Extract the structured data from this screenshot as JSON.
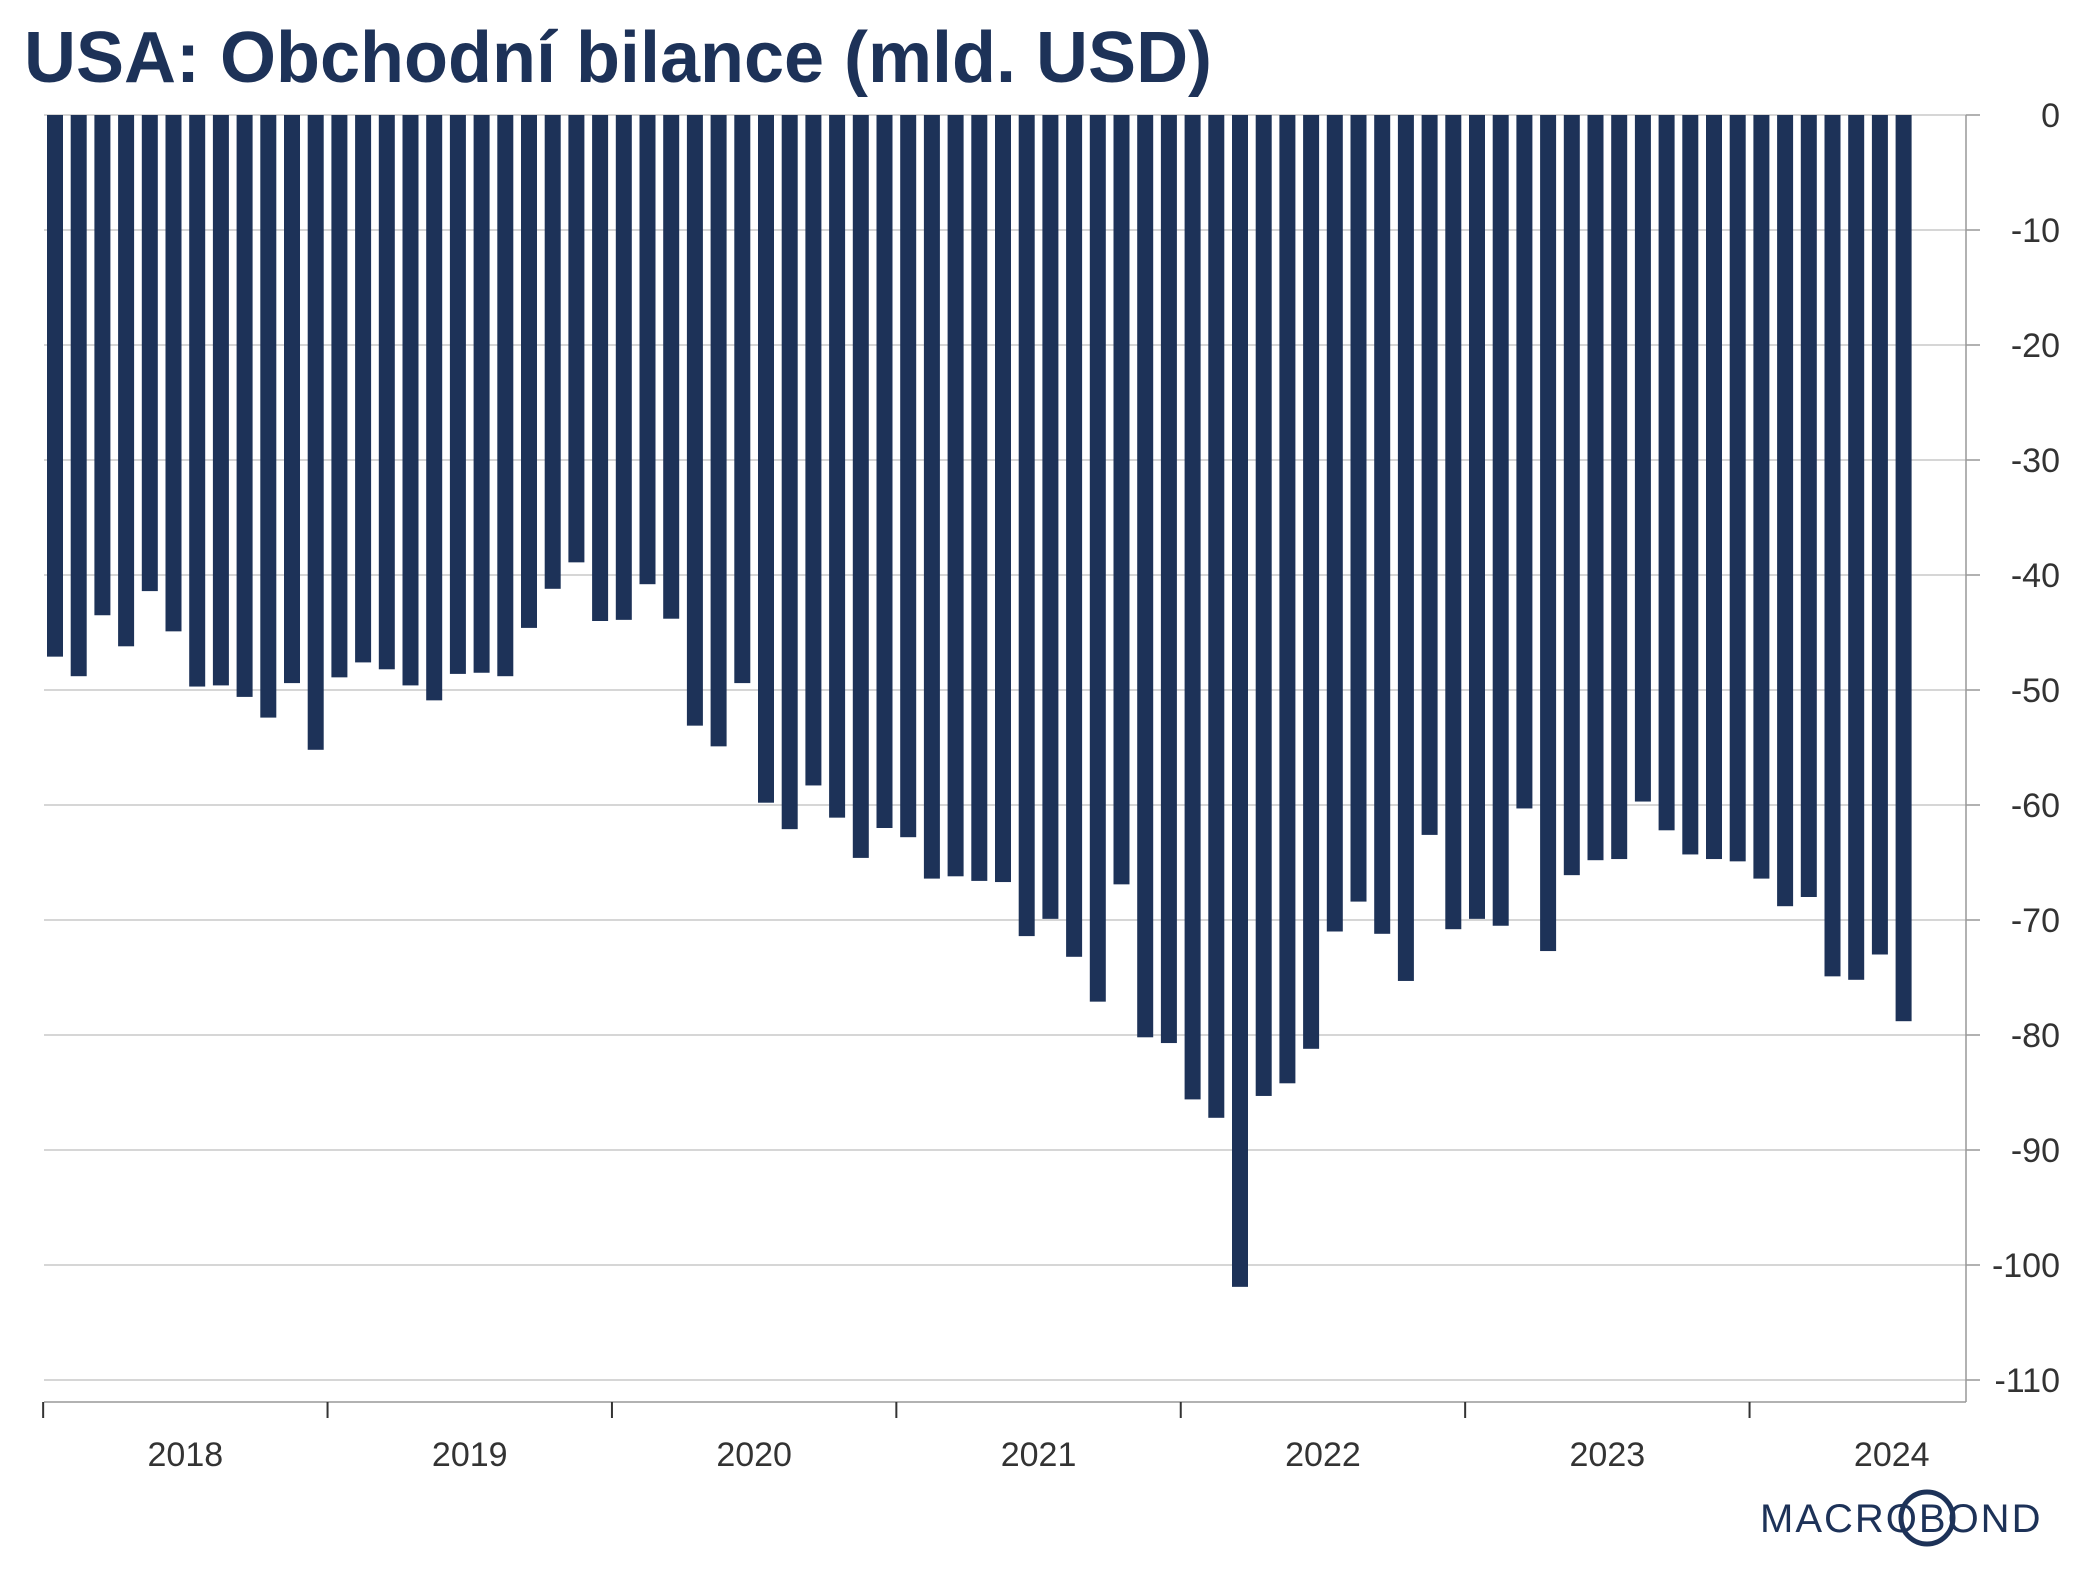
{
  "title": "USA: Obchodní bilance (mld. USD)",
  "brand": "MACROBOND",
  "colors": {
    "bar": "#1d3258",
    "grid": "#c8c8c8",
    "axis": "#999999",
    "text": "#333333",
    "title": "#1d3258"
  },
  "chart_data": {
    "type": "bar",
    "title": "USA: Obchodní bilance (mld. USD)",
    "xlabel": "",
    "ylabel": "",
    "ylim": [
      -110,
      0
    ],
    "yticks": [
      0,
      -10,
      -20,
      -30,
      -40,
      -50,
      -60,
      -70,
      -80,
      -90,
      -100,
      -110
    ],
    "y_axis_side": "right",
    "grid": true,
    "legend": "none",
    "x_tick_labels": [
      "2018",
      "2019",
      "2020",
      "2021",
      "2022",
      "2023",
      "2024"
    ],
    "x_start": "2018-01",
    "frequency": "monthly",
    "values": [
      -47.1,
      -48.8,
      -43.5,
      -46.2,
      -41.4,
      -44.9,
      -49.7,
      -49.6,
      -50.6,
      -52.4,
      -49.4,
      -55.2,
      -48.9,
      -47.6,
      -48.2,
      -49.6,
      -50.9,
      -48.6,
      -48.5,
      -48.8,
      -44.6,
      -41.2,
      -38.9,
      -44.0,
      -43.9,
      -40.8,
      -43.8,
      -53.1,
      -54.9,
      -49.4,
      -59.8,
      -62.1,
      -58.3,
      -61.1,
      -64.6,
      -62.0,
      -62.8,
      -66.4,
      -66.2,
      -66.6,
      -66.7,
      -71.4,
      -69.9,
      -73.2,
      -77.1,
      -66.9,
      -80.2,
      -80.7,
      -85.6,
      -87.2,
      -101.9,
      -85.3,
      -84.2,
      -81.2,
      -71.0,
      -68.4,
      -71.2,
      -75.3,
      -62.6,
      -70.8,
      -69.9,
      -70.5,
      -60.3,
      -72.7,
      -66.1,
      -64.8,
      -64.7,
      -59.7,
      -62.2,
      -64.3,
      -64.7,
      -64.9,
      -66.4,
      -68.8,
      -68.0,
      -74.9,
      -75.2,
      -73.0,
      -78.8
    ]
  }
}
